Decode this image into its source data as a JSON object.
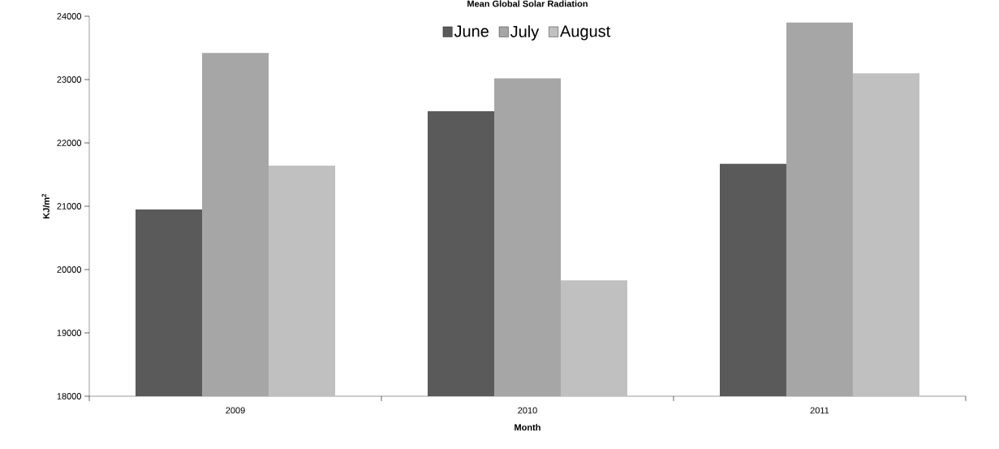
{
  "chart_data": {
    "type": "bar",
    "title": "Mean Global Solar Radiation",
    "xlabel": "Month",
    "ylabel": "KJ/m$^{2}$",
    "categories": [
      "2009",
      "2010",
      "2011"
    ],
    "series": [
      {
        "name": "June",
        "color": "#5a5a5a",
        "values": [
          20950,
          22500,
          21670
        ]
      },
      {
        "name": "July",
        "color": "#a6a6a6",
        "values": [
          23420,
          23020,
          23900
        ]
      },
      {
        "name": "August",
        "color": "#c0c0c0",
        "values": [
          21640,
          19830,
          23100
        ]
      }
    ],
    "ylim": [
      18000,
      24000
    ],
    "yticks": [
      18000,
      19000,
      20000,
      21000,
      22000,
      23000,
      24000
    ],
    "grid": false,
    "legend": "top"
  }
}
